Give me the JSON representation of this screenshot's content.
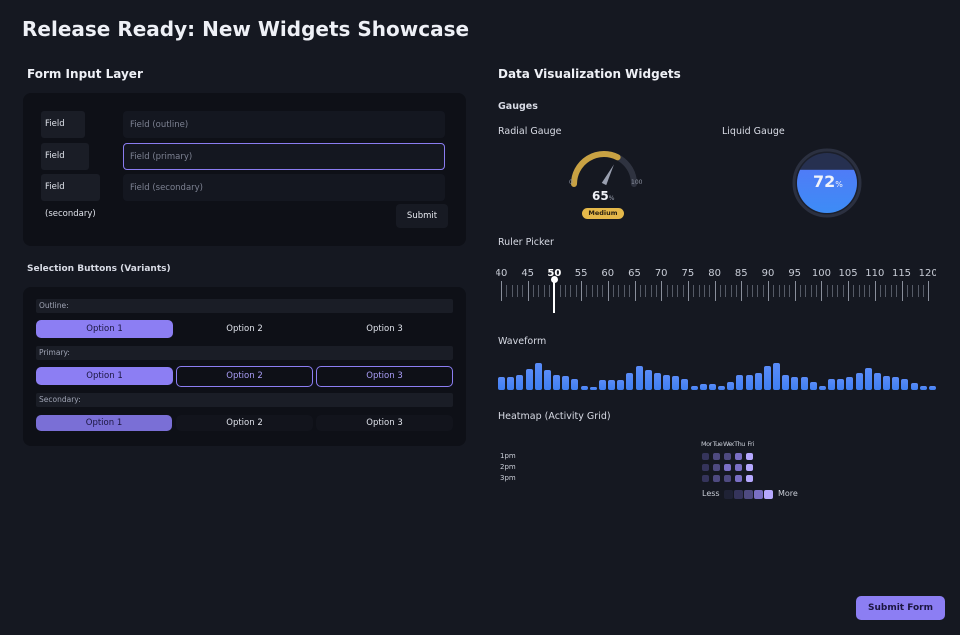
{
  "page_title": "Release Ready: New Widgets Showcase",
  "form": {
    "title": "Form Input Layer",
    "fields": [
      {
        "label": "Field (outline)",
        "placeholder": "Field (outline)",
        "variant": "outline"
      },
      {
        "label": "Field (primary)",
        "placeholder": "Field (primary)",
        "variant": "primary"
      },
      {
        "label": "Field (secondary)",
        "placeholder": "Field (secondary)",
        "variant": "secondary"
      }
    ],
    "submit_label": "Submit"
  },
  "selection": {
    "title": "Selection Buttons (Variants)",
    "groups": [
      {
        "label": "Outline:",
        "options": [
          "Option 1",
          "Option 2",
          "Option 3"
        ],
        "selected": 0
      },
      {
        "label": "Primary:",
        "options": [
          "Option 1",
          "Option 2",
          "Option 3"
        ],
        "selected": 0
      },
      {
        "label": "Secondary:",
        "options": [
          "Option 1",
          "Option 2",
          "Option 3"
        ],
        "selected": 0
      }
    ]
  },
  "viz": {
    "title": "Data Visualization Widgets",
    "gauges_title": "Gauges",
    "radial": {
      "title": "Radial Gauge",
      "value": "65",
      "unit": "%",
      "min": "0",
      "max": "100",
      "badge": "Medium",
      "level": 0.65
    },
    "liquid": {
      "title": "Liquid Gauge",
      "value": "72",
      "unit": "%",
      "level": 0.72
    },
    "ruler": {
      "title": "Ruler Picker",
      "ticks": [
        "40",
        "45",
        "50",
        "55",
        "60",
        "65",
        "70",
        "75",
        "80",
        "85",
        "90",
        "95",
        "100",
        "105",
        "110",
        "115",
        "120"
      ],
      "selected": "50"
    },
    "waveform": {
      "title": "Waveform",
      "bars": [
        0.45,
        0.45,
        0.55,
        0.75,
        0.95,
        0.7,
        0.55,
        0.5,
        0.4,
        0.15,
        0.1,
        0.35,
        0.35,
        0.35,
        0.6,
        0.85,
        0.7,
        0.6,
        0.55,
        0.5,
        0.4,
        0.15,
        0.2,
        0.2,
        0.15,
        0.3,
        0.55,
        0.55,
        0.6,
        0.85,
        0.95,
        0.55,
        0.45,
        0.45,
        0.3,
        0.15,
        0.4,
        0.4,
        0.45,
        0.6,
        0.8,
        0.6,
        0.5,
        0.45,
        0.4,
        0.25,
        0.15,
        0.15
      ]
    },
    "heatmap": {
      "title": "Heatmap (Activity Grid)",
      "days": [
        "Mon",
        "Tue",
        "Wed",
        "Thu",
        "Fri"
      ],
      "hours": [
        "1pm",
        "2pm",
        "3pm"
      ],
      "values": [
        [
          1,
          2,
          2,
          3,
          4
        ],
        [
          1,
          2,
          3,
          3,
          4
        ],
        [
          1,
          2,
          2,
          3,
          4
        ]
      ],
      "legend_less": "Less",
      "legend_more": "More",
      "colors": [
        "#1f2235",
        "#35345b",
        "#4e4a80",
        "#7a6fc4",
        "#b6a8ff"
      ]
    }
  },
  "submit_form_label": "Submit Form"
}
